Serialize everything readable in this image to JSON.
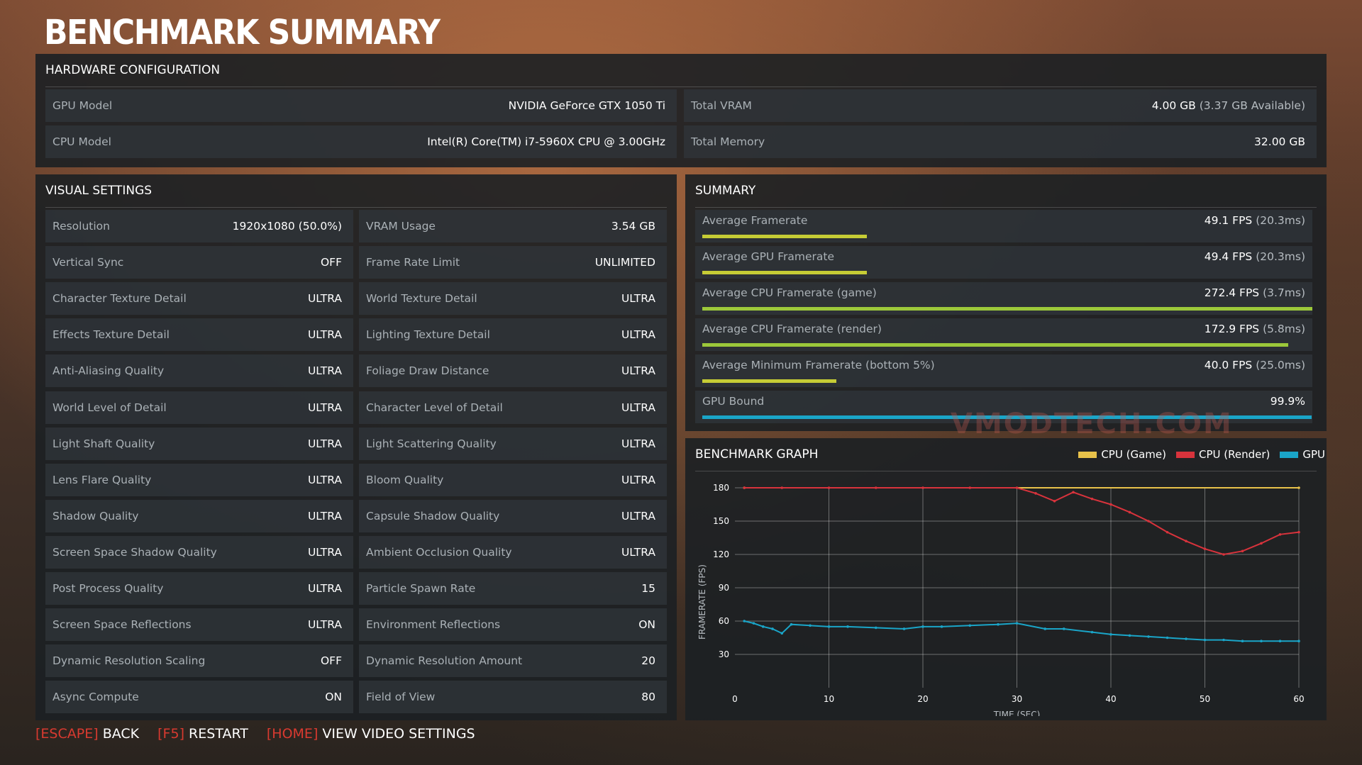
{
  "page_title": "BENCHMARK SUMMARY",
  "hardware": {
    "heading": "HARDWARE CONFIGURATION",
    "gpu_model_label": "GPU Model",
    "gpu_model_value": "NVIDIA GeForce GTX 1050 Ti",
    "total_vram_label": "Total VRAM",
    "total_vram_value": "4.00 GB",
    "total_vram_sub": "(3.37 GB Available)",
    "cpu_model_label": "CPU Model",
    "cpu_model_value": "Intel(R) Core(TM) i7-5960X CPU @ 3.00GHz",
    "total_memory_label": "Total Memory",
    "total_memory_value": "32.00 GB"
  },
  "visual_settings": {
    "heading": "VISUAL SETTINGS",
    "left": [
      {
        "label": "Resolution",
        "value": "1920x1080 (50.0%)"
      },
      {
        "label": "Vertical Sync",
        "value": "OFF"
      },
      {
        "label": "Character Texture Detail",
        "value": "ULTRA"
      },
      {
        "label": "Effects Texture Detail",
        "value": "ULTRA"
      },
      {
        "label": "Anti-Aliasing Quality",
        "value": "ULTRA"
      },
      {
        "label": "World Level of Detail",
        "value": "ULTRA"
      },
      {
        "label": "Light Shaft Quality",
        "value": "ULTRA"
      },
      {
        "label": "Lens Flare Quality",
        "value": "ULTRA"
      },
      {
        "label": "Shadow Quality",
        "value": "ULTRA"
      },
      {
        "label": "Screen Space Shadow Quality",
        "value": "ULTRA"
      },
      {
        "label": "Post Process Quality",
        "value": "ULTRA"
      },
      {
        "label": "Screen Space Reflections",
        "value": "ULTRA"
      },
      {
        "label": "Dynamic Resolution Scaling",
        "value": "OFF"
      },
      {
        "label": "Async Compute",
        "value": "ON"
      }
    ],
    "right": [
      {
        "label": "VRAM Usage",
        "value": "3.54 GB"
      },
      {
        "label": "Frame Rate Limit",
        "value": "UNLIMITED"
      },
      {
        "label": "World Texture Detail",
        "value": "ULTRA"
      },
      {
        "label": "Lighting Texture Detail",
        "value": "ULTRA"
      },
      {
        "label": "Foliage Draw Distance",
        "value": "ULTRA"
      },
      {
        "label": "Character Level of Detail",
        "value": "ULTRA"
      },
      {
        "label": "Light Scattering Quality",
        "value": "ULTRA"
      },
      {
        "label": "Bloom Quality",
        "value": "ULTRA"
      },
      {
        "label": "Capsule Shadow Quality",
        "value": "ULTRA"
      },
      {
        "label": "Ambient Occlusion Quality",
        "value": "ULTRA"
      },
      {
        "label": "Particle Spawn Rate",
        "value": "15"
      },
      {
        "label": "Environment Reflections",
        "value": "ON"
      },
      {
        "label": "Dynamic Resolution Amount",
        "value": "20"
      },
      {
        "label": "Field of View",
        "value": "80"
      }
    ]
  },
  "summary": {
    "heading": "SUMMARY",
    "rows": [
      {
        "label": "Average Framerate",
        "value": "49.1 FPS",
        "sub": "(20.3ms)",
        "fill": 0.27,
        "color": "#c6cc35"
      },
      {
        "label": "Average GPU Framerate",
        "value": "49.4 FPS",
        "sub": "(20.3ms)",
        "fill": 0.27,
        "color": "#c6cc35"
      },
      {
        "label": "Average CPU Framerate (game)",
        "value": "272.4 FPS",
        "sub": "(3.7ms)",
        "fill": 1.0,
        "color": "#9cc83a"
      },
      {
        "label": "Average CPU Framerate (render)",
        "value": "172.9 FPS",
        "sub": "(5.8ms)",
        "fill": 0.96,
        "color": "#9cc83a"
      },
      {
        "label": "Average Minimum Framerate (bottom 5%)",
        "value": "40.0 FPS",
        "sub": "(25.0ms)",
        "fill": 0.22,
        "color": "#c6cc35"
      },
      {
        "label": "GPU Bound",
        "value": "99.9%",
        "sub": "",
        "fill": 0.999,
        "color": "#1aa5c8"
      }
    ]
  },
  "graph": {
    "heading": "BENCHMARK GRAPH",
    "legend": [
      {
        "name": "CPU (Game)",
        "color": "#e8c24a"
      },
      {
        "name": "CPU (Render)",
        "color": "#d8333c"
      },
      {
        "name": "GPU",
        "color": "#1aa5c8"
      }
    ]
  },
  "chart_data": {
    "type": "scatter",
    "title": "BENCHMARK GRAPH",
    "xlabel": "TIME (SEC)",
    "ylabel": "FRAMERATE (FPS)",
    "xlim": [
      0,
      60
    ],
    "ylim": [
      0,
      180
    ],
    "x_ticks": [
      0,
      10,
      20,
      30,
      40,
      50,
      60
    ],
    "y_ticks": [
      30,
      60,
      90,
      120,
      150,
      180
    ],
    "grid": true,
    "legend_position": "top-right",
    "series": [
      {
        "name": "CPU (Game)",
        "color": "#e8c24a",
        "x": [
          1,
          60
        ],
        "y": [
          180,
          180
        ]
      },
      {
        "name": "CPU (Render)",
        "color": "#d8333c",
        "x": [
          1,
          5,
          10,
          15,
          20,
          25,
          30,
          32,
          34,
          36,
          38,
          40,
          42,
          44,
          46,
          48,
          50,
          52,
          54,
          56,
          58,
          60
        ],
        "y": [
          180,
          180,
          180,
          180,
          180,
          180,
          180,
          175,
          168,
          176,
          170,
          165,
          158,
          150,
          140,
          132,
          125,
          120,
          123,
          130,
          138,
          140
        ]
      },
      {
        "name": "GPU",
        "color": "#1aa5c8",
        "x": [
          1,
          2,
          3,
          4,
          5,
          6,
          8,
          10,
          12,
          15,
          18,
          20,
          22,
          25,
          28,
          30,
          33,
          35,
          38,
          40,
          42,
          44,
          46,
          48,
          50,
          52,
          54,
          56,
          58,
          60
        ],
        "y": [
          60,
          58,
          55,
          53,
          49,
          57,
          56,
          55,
          55,
          54,
          53,
          55,
          55,
          56,
          57,
          58,
          53,
          53,
          50,
          48,
          47,
          46,
          45,
          44,
          43,
          43,
          42,
          42,
          42,
          42
        ]
      }
    ]
  },
  "watermark": "VMODTECH.COM",
  "footer": [
    {
      "key": "ESCAPE",
      "action": "BACK"
    },
    {
      "key": "F5",
      "action": "RESTART"
    },
    {
      "key": "HOME",
      "action": "VIEW VIDEO SETTINGS"
    }
  ]
}
